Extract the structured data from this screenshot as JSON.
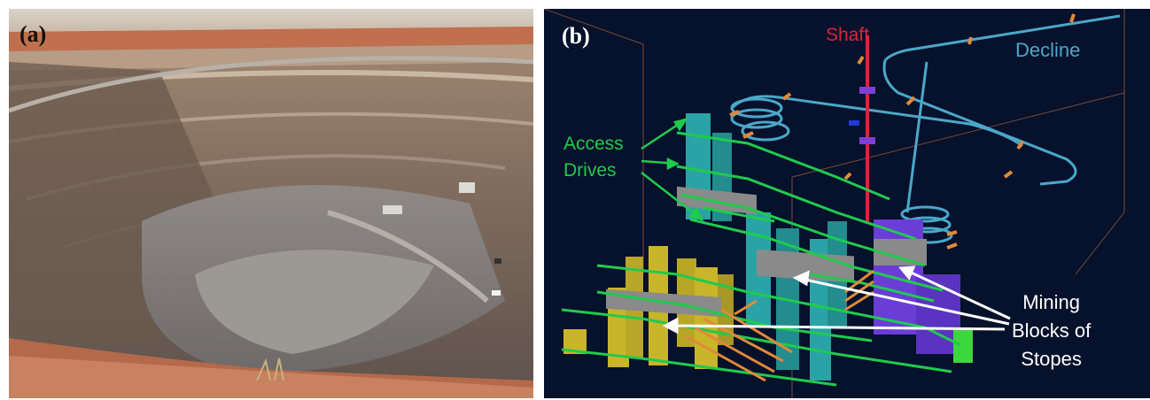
{
  "panel_a": {
    "label": "(a)",
    "description_icon": "open-pit-mine-photo"
  },
  "panel_b": {
    "label": "(b)",
    "shaft_label": "Shaft",
    "decline_label": "Decline",
    "access_drives_label": [
      "Access",
      "Drives"
    ],
    "mining_blocks_label": [
      "Mining",
      "Blocks of",
      "Stopes"
    ],
    "colors": {
      "background": "#06112b",
      "shaft": "#d8263a",
      "decline": "#4ba7c9",
      "access_drives": "#1fcb4d",
      "stope_yellow": "#c8b52a",
      "stope_teal": "#2aa3a6",
      "stope_purple": "#6a3ed6",
      "stope_grey": "#8a8a8a",
      "cross_cut": "#e08a3a"
    }
  }
}
